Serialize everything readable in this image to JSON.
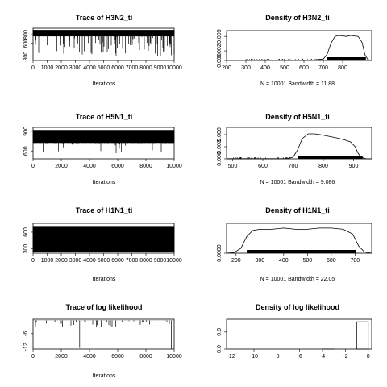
{
  "chart_data": [
    {
      "type": "line",
      "title": "Trace of H3N2_ti",
      "xlabel": "Iterations",
      "ylabel": "",
      "x_ticks": [
        0,
        1000,
        2000,
        3000,
        4000,
        5000,
        6000,
        7000,
        8000,
        9000,
        10000
      ],
      "y_ticks": [
        300,
        600,
        800
      ],
      "xlim": [
        0,
        10000
      ],
      "ylim": [
        200,
        950
      ],
      "trace": {
        "n": 10000,
        "band_low": 760,
        "band_high": 910,
        "spike_prob": 0.009,
        "spike_min": 300
      },
      "footer": ""
    },
    {
      "type": "area",
      "title": "Density of H3N2_ti",
      "xlabel": "",
      "ylabel": "",
      "x_ticks": [
        200,
        300,
        400,
        500,
        600,
        700,
        800
      ],
      "y_ticks": [
        0.0,
        0.002,
        0.005
      ],
      "y_tick_labels": [
        "0.000",
        "0.002",
        "0.005"
      ],
      "xlim": [
        200,
        950
      ],
      "ylim": [
        0,
        0.0062
      ],
      "density": {
        "x": [
          200,
          300,
          500,
          650,
          700,
          720,
          740,
          760,
          780,
          800,
          820,
          840,
          860,
          880,
          900,
          915,
          930,
          950
        ],
        "y": [
          5e-05,
          8e-05,
          9e-05,
          0.0001,
          0.0003,
          0.0013,
          0.0036,
          0.005,
          0.0052,
          0.0051,
          0.005,
          0.0052,
          0.0051,
          0.005,
          0.0038,
          0.0012,
          0.0002,
          0.0
        ]
      },
      "rug": {
        "dense_from": 720,
        "dense_to": 920,
        "sparse_from": 300,
        "sparse_to": 700
      },
      "footer": "N = 10001   Bandwidth = 11.88"
    },
    {
      "type": "line",
      "title": "Trace of H5N1_ti",
      "xlabel": "Iterations",
      "ylabel": "",
      "x_ticks": [
        0,
        2000,
        4000,
        6000,
        8000,
        10000
      ],
      "y_ticks": [
        600,
        900
      ],
      "xlim": [
        0,
        10000
      ],
      "ylim": [
        480,
        960
      ],
      "trace": {
        "n": 10000,
        "band_low": 720,
        "band_high": 920,
        "spike_prob": 0.0015,
        "spike_min": 560
      },
      "footer": ""
    },
    {
      "type": "area",
      "title": "Density of H5N1_ti",
      "xlabel": "",
      "ylabel": "",
      "x_ticks": [
        500,
        600,
        700,
        800,
        900
      ],
      "y_ticks": [
        0.0,
        0.003,
        0.006
      ],
      "y_tick_labels": [
        "0.000",
        "0.003",
        "0.006"
      ],
      "xlim": [
        480,
        960
      ],
      "ylim": [
        0,
        0.0078
      ],
      "density": {
        "x": [
          480,
          560,
          620,
          680,
          700,
          715,
          730,
          750,
          770,
          790,
          810,
          830,
          850,
          870,
          890,
          905,
          915,
          925,
          940,
          960
        ],
        "y": [
          3e-05,
          4e-05,
          5e-05,
          6e-05,
          0.0004,
          0.0022,
          0.005,
          0.0062,
          0.0062,
          0.006,
          0.0057,
          0.0054,
          0.0051,
          0.0047,
          0.0042,
          0.003,
          0.0014,
          0.0004,
          5e-05,
          0.0
        ]
      },
      "rug": {
        "dense_from": 715,
        "dense_to": 930,
        "sparse_from": 500,
        "sparse_to": 700
      },
      "footer": "N = 10001   Bandwidth = 9.086"
    },
    {
      "type": "line",
      "title": "Trace of H1N1_ti",
      "xlabel": "Iterations",
      "ylabel": "",
      "x_ticks": [
        0,
        1000,
        2000,
        3000,
        4000,
        5000,
        6000,
        7000,
        8000,
        9000,
        10000
      ],
      "y_ticks": [
        300,
        600
      ],
      "xlim": [
        0,
        10000
      ],
      "ylim": [
        220,
        760
      ],
      "trace": {
        "n": 10000,
        "band_low": 240,
        "band_high": 710,
        "spike_prob": 0,
        "spike_min": 240
      },
      "footer": ""
    },
    {
      "type": "area",
      "title": "Density of H1N1_ti",
      "xlabel": "",
      "ylabel": "",
      "x_ticks": [
        200,
        300,
        400,
        500,
        600,
        700
      ],
      "y_ticks": [
        0.0
      ],
      "y_tick_labels": [
        "0.0000"
      ],
      "xlim": [
        160,
        770
      ],
      "ylim": [
        0,
        0.0025
      ],
      "density": {
        "x": [
          160,
          190,
          220,
          245,
          270,
          300,
          350,
          400,
          450,
          500,
          550,
          600,
          650,
          690,
          715,
          740,
          770
        ],
        "y": [
          0.0,
          5e-05,
          0.0004,
          0.0014,
          0.0019,
          0.002,
          0.002,
          0.0021,
          0.002,
          0.002,
          0.0021,
          0.0021,
          0.002,
          0.0016,
          0.0006,
          0.0001,
          0.0
        ]
      },
      "rug": {
        "dense_from": 245,
        "dense_to": 705,
        "sparse_from": 0,
        "sparse_to": 0
      },
      "footer": "N = 10001   Bandwidth = 22.05"
    },
    {
      "type": "line",
      "title": "Trace of log likelihood",
      "xlabel": "Iterations",
      "ylabel": "",
      "x_ticks": [
        0,
        2000,
        4000,
        6000,
        8000,
        10000
      ],
      "y_ticks": [
        -12,
        -6
      ],
      "xlim": [
        0,
        10000
      ],
      "ylim": [
        -13,
        0.5
      ],
      "trace": {
        "n": 10000,
        "band_low": -0.05,
        "band_high": 0,
        "spike_prob": 0.004,
        "spike_min": -3,
        "big_spikes": [
          [
            3300,
            -12.5
          ],
          [
            9800,
            -12.8
          ],
          [
            2200,
            -3.5
          ],
          [
            5600,
            -3.0
          ]
        ]
      },
      "footer": ""
    },
    {
      "type": "bar",
      "title": "Density of log likelihood",
      "xlabel": "",
      "ylabel": "",
      "x_ticks": [
        -12,
        -10,
        -8,
        -6,
        -4,
        -2,
        0
      ],
      "y_ticks": [
        0.0,
        0.6
      ],
      "y_tick_labels": [
        "0.0",
        "0.6"
      ],
      "xlim": [
        -12.4,
        0.3
      ],
      "ylim": [
        0,
        1.05
      ],
      "bins": [
        {
          "from": -13,
          "to": -12,
          "value": 0.0
        },
        {
          "from": -4,
          "to": -3,
          "value": 0.003
        },
        {
          "from": -1,
          "to": 0,
          "value": 0.96
        }
      ],
      "footer": ""
    }
  ]
}
